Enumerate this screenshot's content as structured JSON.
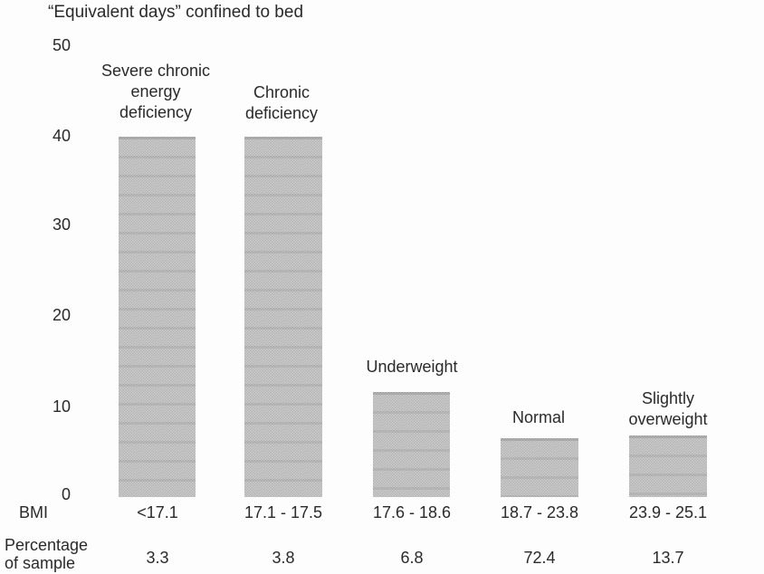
{
  "page": {
    "title": "“Equivalent days” confined to bed"
  },
  "y_axis": {
    "ticks": [
      "50",
      "40",
      "30",
      "20",
      "10",
      "0"
    ]
  },
  "row_labels": {
    "bmi": "BMI",
    "percentage": [
      "Percentage",
      "of sample"
    ]
  },
  "bars": [
    {
      "category_lines": [
        "Severe chronic",
        "energy",
        "deficiency"
      ],
      "bmi_range": "<17.1",
      "percent_of_sample": "3.3",
      "value": 40
    },
    {
      "category_lines": [
        "Chronic",
        "deficiency"
      ],
      "bmi_range": "17.1 - 17.5",
      "percent_of_sample": "3.8",
      "value": 40
    },
    {
      "category_lines": [
        "Underweight"
      ],
      "bmi_range": "17.6 - 18.6",
      "percent_of_sample": "6.8",
      "value": 11.7
    },
    {
      "category_lines": [
        "Normal"
      ],
      "bmi_range": "18.7 - 23.8",
      "percent_of_sample": "72.4",
      "value": 6.5
    },
    {
      "category_lines": [
        "Slightly",
        "overweight"
      ],
      "bmi_range": "23.9 - 25.1",
      "percent_of_sample": "13.7",
      "value": 6.8
    }
  ],
  "chart_data": {
    "type": "bar",
    "title": "“Equivalent days” confined to bed",
    "categories": [
      "Severe chronic energy deficiency",
      "Chronic deficiency",
      "Underweight",
      "Normal",
      "Slightly overweight"
    ],
    "x_bmi_ranges": [
      "<17.1",
      "17.1 - 17.5",
      "17.6 - 18.6",
      "18.7 - 23.8",
      "23.9 - 25.1"
    ],
    "percentage_of_sample": [
      3.3,
      3.8,
      6.8,
      72.4,
      13.7
    ],
    "values": [
      40,
      40,
      11.7,
      6.5,
      6.8
    ],
    "xlabel": "BMI",
    "ylabel": "“Equivalent days” confined to bed",
    "ylim": [
      0,
      50
    ],
    "yticks": [
      0,
      10,
      20,
      30,
      40,
      50
    ],
    "grid": false,
    "legend": false,
    "bar_color": "#bfbfbf",
    "background_color": "#fdfdfd"
  }
}
